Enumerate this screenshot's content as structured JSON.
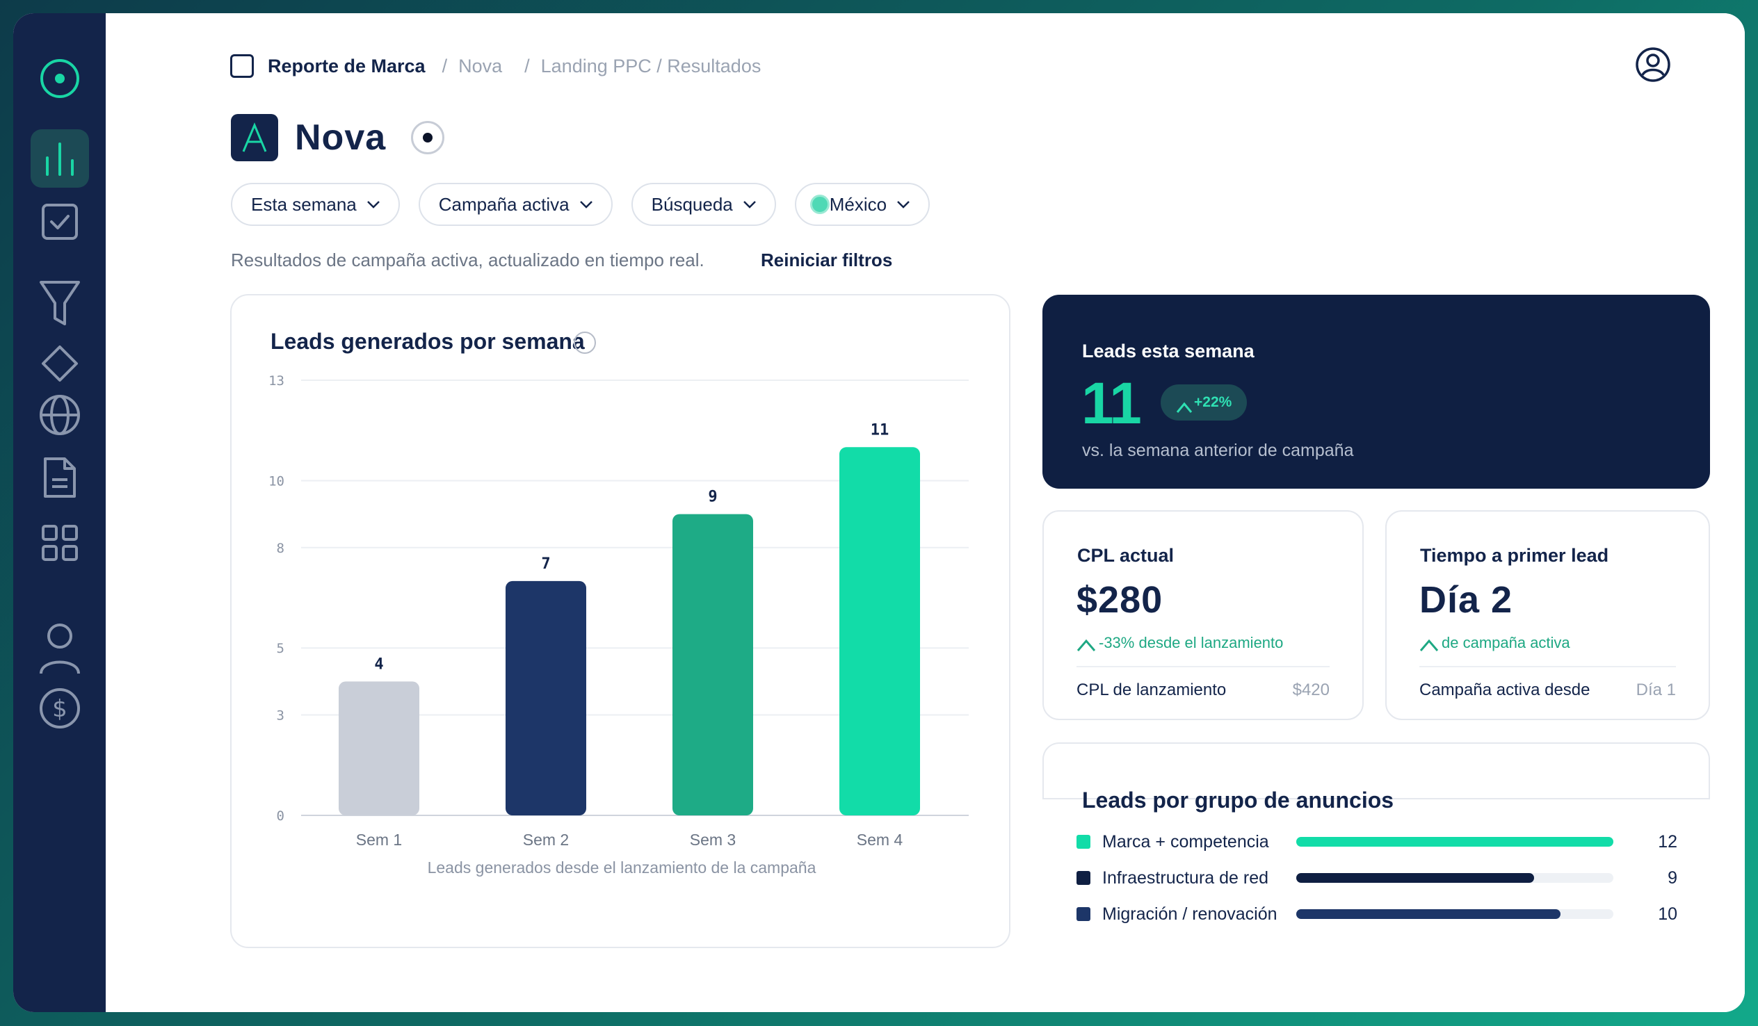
{
  "breadcrumb": {
    "root": "Reporte de Marca",
    "items": [
      "Nova",
      "Landing PPC / Resultados"
    ]
  },
  "page": {
    "title": "Nova",
    "logo_letter": "A",
    "description": "Resultados de campaña activa, actualizado en tiempo real.",
    "reset_label": "Reiniciar filtros"
  },
  "filters": [
    {
      "label": "Esta semana"
    },
    {
      "label": "Campaña activa"
    },
    {
      "label": "Búsqueda"
    },
    {
      "label": "México"
    }
  ],
  "sidebar": {
    "items": [
      "logo-icon",
      "bar-chart-icon",
      "checkbox-icon",
      "funnel-icon",
      "diamond-icon",
      "globe-icon",
      "document-icon",
      "grid-icon",
      "user-icon",
      "dollar-icon"
    ]
  },
  "colors": {
    "navy": "#13244a",
    "dark_card": "#0f1f42",
    "teal": "#19d6a5",
    "bar_sem1": "#c9ced8",
    "bar_sem2": "#1d3668",
    "bar_sem3": "#1eab86",
    "bar_sem4": "#12dca8"
  },
  "chart_data": {
    "type": "bar",
    "title": "Leads generados por semana",
    "categories": [
      "Sem 1",
      "Sem 2",
      "Sem 3",
      "Sem 4"
    ],
    "values": [
      4,
      7,
      9,
      11
    ],
    "data_labels": [
      "4",
      "7",
      "9",
      "11"
    ],
    "y_ticks": [
      "0",
      "3",
      "5",
      "8",
      "10",
      "13"
    ],
    "ylim": [
      0,
      13
    ],
    "xlabel": "Leads generados desde el lanzamiento de la campaña",
    "ylabel": "",
    "grid": true
  },
  "kpi_week": {
    "label": "Leads esta semana",
    "value": "11",
    "badge": "+22%",
    "sub": "vs. la semana anterior de campaña"
  },
  "kpi_cpl": {
    "label": "CPL actual",
    "value": "$280",
    "trend": "-33% desde el lanzamiento",
    "foot_label": "CPL de lanzamiento",
    "foot_value": "$420"
  },
  "kpi_time": {
    "label": "Tiempo a primer lead",
    "value": "Día 2",
    "trend": "de campaña activa",
    "foot_label": "Campaña activa desde",
    "foot_value": "Día 1"
  },
  "ad_groups": {
    "title": "Leads por grupo de anuncios",
    "max": 12,
    "rows": [
      {
        "name": "Marca + competencia",
        "value": 12,
        "display": "12",
        "color": "#12dca8"
      },
      {
        "name": "Infraestructura de red",
        "value": 9,
        "display": "9",
        "color": "#0f1f42"
      },
      {
        "name": "Migración / renovación",
        "value": 10,
        "display": "10",
        "color": "#1d3668"
      }
    ]
  }
}
